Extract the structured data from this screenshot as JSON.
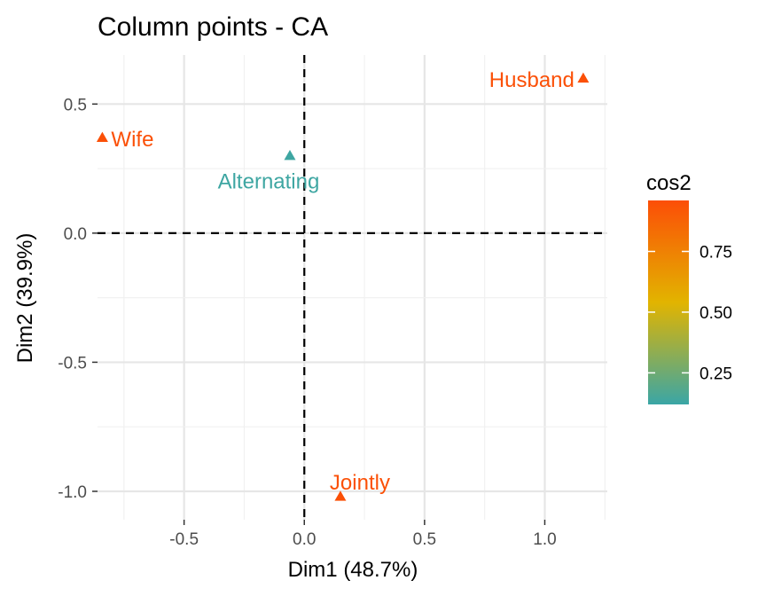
{
  "chart_data": {
    "type": "scatter",
    "title": "Column points - CA",
    "xlabel": "Dim1 (48.7%)",
    "ylabel": "Dim2 (39.9%)",
    "xlim": [
      -0.86,
      1.26
    ],
    "ylim": [
      -1.11,
      0.69
    ],
    "x_ticks": [
      -0.5,
      0.0,
      0.5,
      1.0
    ],
    "x_tick_labels": [
      "-0.5",
      "0.0",
      "0.5",
      "1.0"
    ],
    "y_ticks": [
      -1.0,
      -0.5,
      0.0,
      0.5
    ],
    "y_tick_labels": [
      "-1.0",
      "-0.5",
      "0.0",
      "0.5"
    ],
    "grid": true,
    "reference_lines": {
      "x": 0,
      "y": 0,
      "style": "dashed"
    },
    "points": [
      {
        "label": "Wife",
        "x": -0.84,
        "y": 0.37,
        "cos2": 0.95
      },
      {
        "label": "Alternating",
        "x": -0.06,
        "y": 0.3,
        "cos2": 0.13
      },
      {
        "label": "Husband",
        "x": 1.16,
        "y": 0.6,
        "cos2": 0.95
      },
      {
        "label": "Jointly",
        "x": 0.15,
        "y": -1.02,
        "cos2": 0.95
      }
    ],
    "point_marker": "triangle",
    "legend": {
      "title": "cos2",
      "placement": "right",
      "range": [
        0.12,
        0.96
      ],
      "ticks": [
        0.25,
        0.5,
        0.75
      ],
      "tick_labels": [
        "0.25",
        "0.50",
        "0.75"
      ],
      "colors": {
        "low": "#3aa6a6",
        "mid": "#e2b400",
        "high": "#fc4e07"
      }
    }
  }
}
